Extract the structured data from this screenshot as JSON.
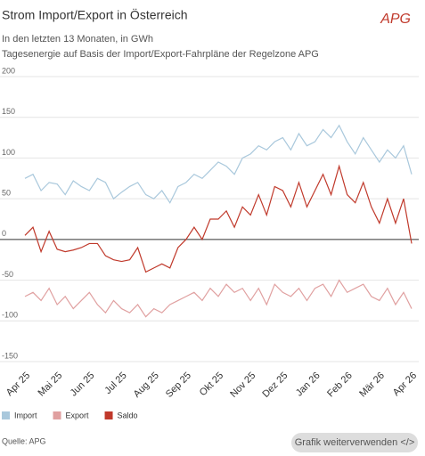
{
  "chart_data": {
    "type": "line",
    "title": "Strom Import/Export in Österreich",
    "subtitle": [
      "In den letzten 13 Monaten, in GWh",
      "Tagesenergie auf Basis der Import/Export-Fahrpläne der Regelzone APG"
    ],
    "categories": [
      "Apr 25",
      null,
      null,
      null,
      "Mai 25",
      null,
      null,
      null,
      "Jun 25",
      null,
      null,
      null,
      "Jul 25",
      null,
      null,
      null,
      "Aug 25",
      null,
      null,
      null,
      "Sep 25",
      null,
      null,
      null,
      "Okt 25",
      null,
      null,
      null,
      "Nov 25",
      null,
      null,
      null,
      "Dez 25",
      null,
      null,
      null,
      "Jan 26",
      null,
      null,
      null,
      "Feb 26",
      null,
      null,
      null,
      "Mär 26",
      null,
      null,
      null,
      "Apr 26"
    ],
    "series": [
      {
        "name": "Import",
        "color": "#a9c8dc",
        "values": [
          75,
          80,
          60,
          70,
          68,
          55,
          72,
          65,
          60,
          75,
          70,
          50,
          58,
          65,
          70,
          55,
          50,
          60,
          45,
          65,
          70,
          80,
          75,
          85,
          95,
          90,
          80,
          100,
          105,
          115,
          110,
          120,
          125,
          110,
          130,
          115,
          120,
          135,
          125,
          140,
          120,
          105,
          125,
          110,
          95,
          110,
          100,
          115,
          80
        ]
      },
      {
        "name": "Export",
        "color": "#e0a0a0",
        "values": [
          -70,
          -65,
          -75,
          -60,
          -80,
          -70,
          -85,
          -75,
          -65,
          -80,
          -90,
          -75,
          -85,
          -90,
          -80,
          -95,
          -85,
          -90,
          -80,
          -75,
          -70,
          -65,
          -75,
          -60,
          -70,
          -55,
          -65,
          -60,
          -75,
          -60,
          -80,
          -55,
          -65,
          -70,
          -60,
          -75,
          -60,
          -55,
          -70,
          -50,
          -65,
          -60,
          -55,
          -70,
          -75,
          -60,
          -80,
          -65,
          -85
        ]
      },
      {
        "name": "Saldo",
        "color": "#c0392b",
        "values": [
          5,
          15,
          -15,
          10,
          -12,
          -15,
          -13,
          -10,
          -5,
          -5,
          -20,
          -25,
          -27,
          -25,
          -10,
          -40,
          -35,
          -30,
          -35,
          -10,
          0,
          15,
          0,
          25,
          25,
          35,
          15,
          40,
          30,
          55,
          30,
          65,
          60,
          40,
          70,
          40,
          60,
          80,
          55,
          90,
          55,
          45,
          70,
          40,
          20,
          50,
          20,
          50,
          -5
        ]
      }
    ],
    "ylim": [
      -150,
      200
    ],
    "yticks": [
      200,
      150,
      100,
      50,
      0,
      -50,
      -100,
      -150
    ],
    "grid": true
  },
  "logo": "APG",
  "source": "Quelle: APG",
  "button": "Grafik weiterverwenden </>"
}
